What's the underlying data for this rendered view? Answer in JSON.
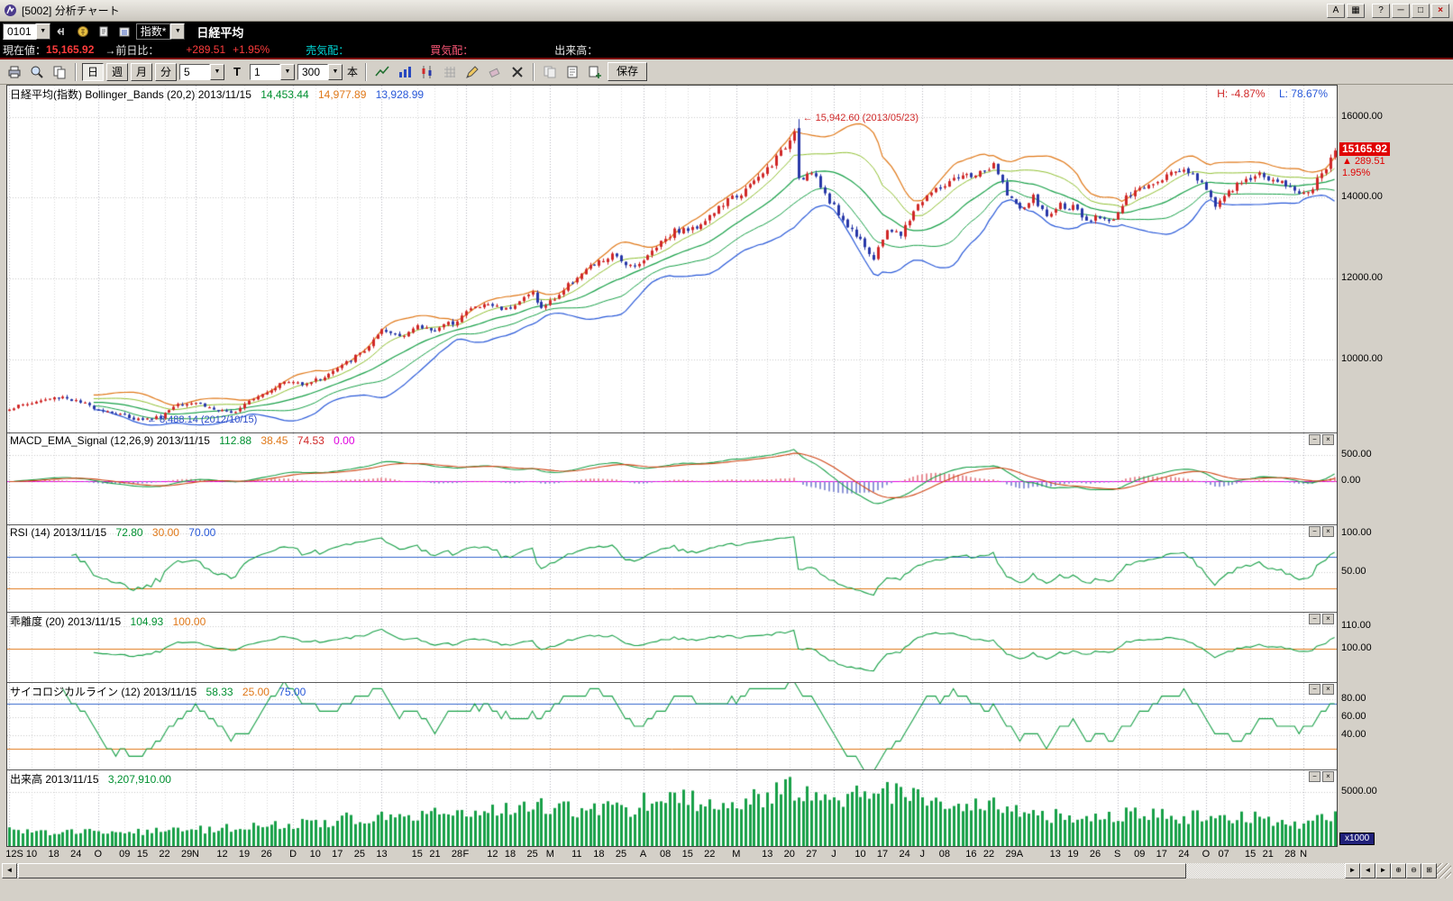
{
  "window": {
    "title": "[5002] 分析チャート"
  },
  "icons": {
    "dropdown": "▼",
    "panel_minimize": "−",
    "panel_close": "×",
    "scroll_left": "◄",
    "scroll_right": "►",
    "step_left": "◄",
    "step_right": "►",
    "zoom_in": "⊕",
    "zoom_out": "⊖",
    "layout_grid": "⊞",
    "title_a": "A",
    "title_layout": "▦",
    "title_help": "?",
    "title_minimize": "─",
    "title_maximize": "□",
    "title_close": "×"
  },
  "toolbar1": {
    "symbol_value": "0101",
    "category_value": "指数*",
    "instrument_name": "日経平均"
  },
  "infobar": {
    "current_label": "現在値：",
    "current_value": "15,165.92",
    "prev_label": "→前日比：",
    "change_value": "+289.51",
    "change_pct": "+1.95%",
    "ask_label": "売気配：",
    "bid_label": "買気配：",
    "volume_label": "出来高："
  },
  "toolbar2": {
    "period_day": "日",
    "period_week": "週",
    "period_month": "月",
    "period_minute": "分",
    "minute_value": "5",
    "t_label": "T",
    "interval_value": "1",
    "bars_value": "300",
    "bars_unit": "本",
    "save_label": "保存"
  },
  "panels": {
    "main": {
      "legend": "日経平均(指数) Bollinger_Bands (20,2) 2013/11/15",
      "band_mid": "14,453.44",
      "band_upper": "14,977.89",
      "band_lower": "13,928.99",
      "high_pct": "H: -4.87%",
      "low_pct": "L: 78.67%",
      "annotation_high": "← 15,942.60 (2013/05/23)",
      "annotation_low": "← 8,488.14 (2012/10/15)",
      "price_box": {
        "price": "15165.92",
        "change": "▲ 289.51",
        "pct": "1.95%"
      }
    },
    "macd": {
      "legend": "MACD_EMA_Signal (12,26,9) 2013/11/15",
      "v_macd": "112.88",
      "v_osc": "38.45",
      "v_signal": "74.53",
      "v_zero": "0.00"
    },
    "rsi": {
      "legend": "RSI (14) 2013/11/15",
      "v_rsi": "72.80",
      "v_low": "30.00",
      "v_high": "70.00"
    },
    "kairi": {
      "legend": "乖離度 (20) 2013/11/15",
      "v_kairi": "104.93",
      "v_base": "100.00"
    },
    "psy": {
      "legend": "サイコロジカルライン (12) 2013/11/15",
      "v_psy": "58.33",
      "v_low": "25.00",
      "v_high": "75.00"
    },
    "volume": {
      "legend": "出来高 2013/11/15",
      "v_volume": "3,207,910.00",
      "unit_box": "x1000"
    }
  },
  "chart_data": {
    "type": "candlestick",
    "title": "日経平均(指数) Bollinger_Bands (20,2)",
    "bars": 300,
    "date_range": [
      "2012/09",
      "2013/11/15"
    ],
    "last": {
      "close": 15165.92,
      "change": 289.51,
      "change_pct": 1.95,
      "volume": 3207910
    },
    "key_points": {
      "high": {
        "index": 178,
        "value": 15942.6,
        "date": "2013/05/23"
      },
      "low": {
        "index": 30,
        "value": 8488.14,
        "date": "2012/10/15"
      }
    },
    "price_anchors": [
      [
        0,
        8800
      ],
      [
        8,
        9010
      ],
      [
        12,
        9090
      ],
      [
        16,
        8930
      ],
      [
        20,
        8790
      ],
      [
        25,
        8640
      ],
      [
        30,
        8500
      ],
      [
        34,
        8590
      ],
      [
        38,
        8930
      ],
      [
        42,
        8950
      ],
      [
        46,
        8770
      ],
      [
        50,
        8664
      ],
      [
        54,
        9020
      ],
      [
        58,
        9220
      ],
      [
        62,
        9450
      ],
      [
        66,
        9420
      ],
      [
        70,
        9520
      ],
      [
        75,
        9840
      ],
      [
        80,
        10230
      ],
      [
        84,
        10690
      ],
      [
        88,
        10600
      ],
      [
        92,
        10800
      ],
      [
        96,
        10750
      ],
      [
        100,
        10920
      ],
      [
        104,
        11260
      ],
      [
        108,
        11370
      ],
      [
        112,
        11250
      ],
      [
        116,
        11520
      ],
      [
        118,
        11660
      ],
      [
        120,
        11250
      ],
      [
        124,
        11610
      ],
      [
        128,
        12060
      ],
      [
        132,
        12350
      ],
      [
        136,
        12560
      ],
      [
        140,
        12340
      ],
      [
        143,
        12420
      ],
      [
        146,
        12830
      ],
      [
        150,
        13190
      ],
      [
        154,
        13220
      ],
      [
        158,
        13550
      ],
      [
        162,
        13930
      ],
      [
        166,
        14180
      ],
      [
        170,
        14600
      ],
      [
        174,
        15100
      ],
      [
        177,
        15627
      ],
      [
        178,
        14483
      ],
      [
        181,
        14612
      ],
      [
        184,
        14100
      ],
      [
        186,
        13775
      ],
      [
        189,
        13290
      ],
      [
        192,
        13015
      ],
      [
        195,
        12445
      ],
      [
        198,
        13240
      ],
      [
        201,
        13060
      ],
      [
        204,
        13680
      ],
      [
        207,
        14055
      ],
      [
        211,
        14310
      ],
      [
        215,
        14506
      ],
      [
        219,
        14600
      ],
      [
        222,
        14778
      ],
      [
        225,
        14130
      ],
      [
        228,
        13668
      ],
      [
        231,
        14000
      ],
      [
        234,
        13520
      ],
      [
        237,
        13820
      ],
      [
        240,
        13758
      ],
      [
        243,
        13365
      ],
      [
        246,
        13542
      ],
      [
        249,
        13460
      ],
      [
        252,
        13978
      ],
      [
        255,
        14210
      ],
      [
        258,
        14404
      ],
      [
        262,
        14620
      ],
      [
        265,
        14732
      ],
      [
        268,
        14484
      ],
      [
        270,
        14170
      ],
      [
        272,
        13853
      ],
      [
        276,
        14194
      ],
      [
        279,
        14467
      ],
      [
        282,
        14561
      ],
      [
        285,
        14426
      ],
      [
        288,
        14328
      ],
      [
        290,
        14201
      ],
      [
        293,
        14086
      ],
      [
        296,
        14567
      ],
      [
        299,
        15165.92
      ]
    ],
    "volume_anchors": [
      [
        0,
        1400000
      ],
      [
        15,
        1250000
      ],
      [
        30,
        1350000
      ],
      [
        45,
        1550000
      ],
      [
        60,
        1900000
      ],
      [
        70,
        2200000
      ],
      [
        80,
        2700000
      ],
      [
        85,
        3200000
      ],
      [
        95,
        2900000
      ],
      [
        105,
        3100000
      ],
      [
        115,
        3300000
      ],
      [
        122,
        3700000
      ],
      [
        130,
        3400000
      ],
      [
        140,
        3600000
      ],
      [
        146,
        4400000
      ],
      [
        155,
        4100000
      ],
      [
        164,
        4300000
      ],
      [
        172,
        4700000
      ],
      [
        178,
        5600000
      ],
      [
        183,
        5100000
      ],
      [
        188,
        4700000
      ],
      [
        195,
        5700000
      ],
      [
        200,
        4800000
      ],
      [
        207,
        4300000
      ],
      [
        215,
        4000000
      ],
      [
        222,
        3800000
      ],
      [
        228,
        3300000
      ],
      [
        235,
        2800000
      ],
      [
        242,
        2600000
      ],
      [
        250,
        3000000
      ],
      [
        258,
        3100000
      ],
      [
        265,
        2700000
      ],
      [
        272,
        2800000
      ],
      [
        280,
        2600000
      ],
      [
        286,
        2300000
      ],
      [
        292,
        2100000
      ],
      [
        296,
        2600000
      ],
      [
        299,
        3207910
      ]
    ],
    "xticks": [
      [
        0,
        "12S"
      ],
      [
        5,
        "10"
      ],
      [
        10,
        "18"
      ],
      [
        15,
        "24"
      ],
      [
        20,
        "O"
      ],
      [
        26,
        "09"
      ],
      [
        30,
        "15"
      ],
      [
        35,
        "22"
      ],
      [
        40,
        "29"
      ],
      [
        42,
        "N"
      ],
      [
        48,
        "12"
      ],
      [
        53,
        "19"
      ],
      [
        58,
        "26"
      ],
      [
        64,
        "D"
      ],
      [
        69,
        "10"
      ],
      [
        74,
        "17"
      ],
      [
        79,
        "25"
      ],
      [
        84,
        "13"
      ],
      [
        92,
        "15"
      ],
      [
        96,
        "21"
      ],
      [
        101,
        "28"
      ],
      [
        103,
        "F"
      ],
      [
        109,
        "12"
      ],
      [
        113,
        "18"
      ],
      [
        118,
        "25"
      ],
      [
        122,
        "M"
      ],
      [
        128,
        "11"
      ],
      [
        133,
        "18"
      ],
      [
        138,
        "25"
      ],
      [
        143,
        "A"
      ],
      [
        148,
        "08"
      ],
      [
        153,
        "15"
      ],
      [
        158,
        "22"
      ],
      [
        164,
        "M"
      ],
      [
        171,
        "13"
      ],
      [
        176,
        "20"
      ],
      [
        181,
        "27"
      ],
      [
        186,
        "J"
      ],
      [
        192,
        "10"
      ],
      [
        197,
        "17"
      ],
      [
        202,
        "24"
      ],
      [
        206,
        "J"
      ],
      [
        211,
        "08"
      ],
      [
        217,
        "16"
      ],
      [
        221,
        "22"
      ],
      [
        226,
        "29"
      ],
      [
        228,
        "A"
      ],
      [
        236,
        "13"
      ],
      [
        240,
        "19"
      ],
      [
        245,
        "26"
      ],
      [
        250,
        "S"
      ],
      [
        255,
        "09"
      ],
      [
        260,
        "17"
      ],
      [
        265,
        "24"
      ],
      [
        270,
        "O"
      ],
      [
        274,
        "07"
      ],
      [
        280,
        "15"
      ],
      [
        284,
        "21"
      ],
      [
        289,
        "28"
      ],
      [
        292,
        "N"
      ]
    ],
    "month_starts": [
      0,
      20,
      42,
      64,
      84,
      103,
      122,
      143,
      164,
      186,
      206,
      228,
      250,
      270,
      292
    ],
    "panels": {
      "main": {
        "ylim": [
          8200,
          16770
        ],
        "grid": [
          16000,
          14000,
          12000,
          10000
        ],
        "axis_labels": [
          [
            16000,
            "16000.00"
          ],
          [
            14000,
            "14000.00"
          ],
          [
            12000,
            "12000.00"
          ],
          [
            10000,
            "10000.00"
          ]
        ]
      },
      "macd": {
        "ylim": [
          -800,
          900
        ],
        "grid": [
          500
        ],
        "refs": [
          [
            0,
            "#e000e0"
          ]
        ],
        "axis_labels": [
          [
            500,
            "500.00"
          ],
          [
            0,
            "0.00"
          ]
        ],
        "params": [
          12,
          26,
          9
        ]
      },
      "rsi": {
        "ylim": [
          0,
          110
        ],
        "grid": [
          100,
          50
        ],
        "refs": [
          [
            70,
            "#3366cc"
          ],
          [
            30,
            "#e07818"
          ]
        ],
        "axis_labels": [
          [
            100,
            "100.00"
          ],
          [
            50,
            "50.00"
          ]
        ],
        "period": 14
      },
      "kairi": {
        "ylim": [
          85,
          116
        ],
        "grid": [
          110
        ],
        "refs": [
          [
            100,
            "#e07818"
          ]
        ],
        "axis_labels": [
          [
            110,
            "110.00"
          ],
          [
            100,
            "100.00"
          ]
        ],
        "period": 20
      },
      "psy": {
        "ylim": [
          2,
          98
        ],
        "grid": [
          80,
          60,
          40
        ],
        "refs": [
          [
            75,
            "#3366cc"
          ],
          [
            25,
            "#e07818"
          ]
        ],
        "axis_labels": [
          [
            80,
            "80.00"
          ],
          [
            60,
            "60.00"
          ],
          [
            40,
            "40.00"
          ]
        ],
        "period": 12
      },
      "volume": {
        "ylim": [
          0,
          7000
        ],
        "grid": [
          5000
        ],
        "axis_labels": [
          [
            5000,
            "5000.00"
          ]
        ]
      }
    },
    "colors": {
      "up": "#d02828",
      "down": "#2838a8",
      "bb_upper2": "#e07818",
      "bb_upper1": "#8fbf30",
      "bb_mid": "#18a048",
      "bb_lower1": "#18a048",
      "bb_lower2": "#2858d8",
      "macd_line": "#18a048",
      "signal_line": "#d04818",
      "hist_pos": "#e89098",
      "hist_neg": "#9098d8",
      "indicator": "#18a048",
      "volume_bar": "#18a048"
    }
  }
}
